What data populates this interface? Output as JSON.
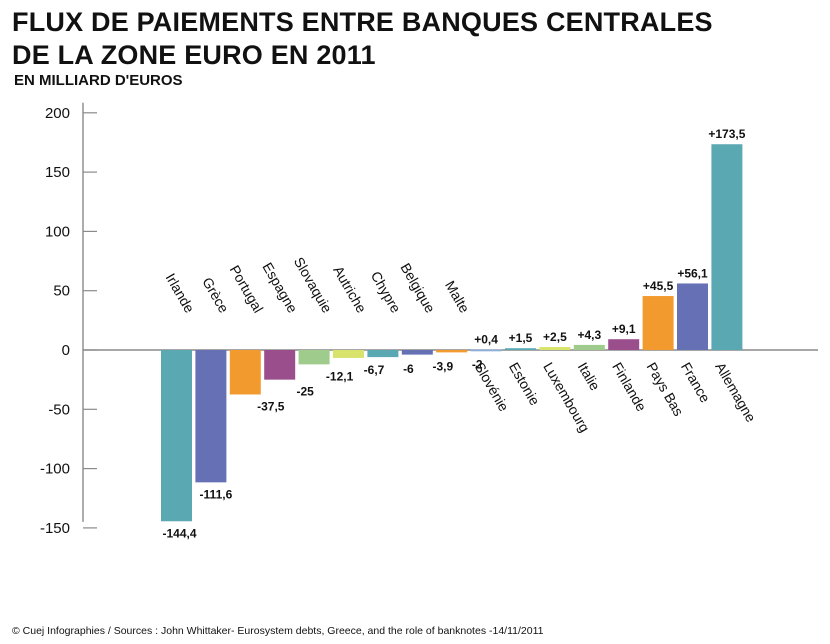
{
  "title_line1": "FLUX DE PAIEMENTS ENTRE BANQUES CENTRALES",
  "title_line2": "DE LA ZONE EURO EN 2011",
  "subtitle": "EN MILLIARD D'EUROS",
  "footer": "© Cuej Infographies / Sources : John Whittaker- Eurosystem debts, Greece, and the role of banknotes -14/11/2011",
  "chart_data": {
    "type": "bar",
    "title": "FLUX DE PAIEMENTS ENTRE BANQUES CENTRALES DE LA ZONE EURO EN 2011",
    "ylabel": "EN MILLIARD D'EUROS",
    "ylim": [
      -150,
      200
    ],
    "yticks": [
      200,
      150,
      100,
      50,
      0,
      -50,
      -100,
      -150
    ],
    "ytick_labels": [
      "200",
      "150",
      "100",
      "50",
      "0",
      "-50",
      "-100",
      "-150"
    ],
    "grid": false,
    "categories": [
      "Irlande",
      "Grèce",
      "Portugal",
      "Espagne",
      "Slovaquie",
      "Autriche",
      "Chypre",
      "Belgique",
      "Malte",
      "Slovénie",
      "Estonie",
      "Luxembourg",
      "Italie",
      "Finlande",
      "Pays Bas",
      "France",
      "Allemagne"
    ],
    "values": [
      -144.4,
      -111.6,
      -37.5,
      -25,
      -12.1,
      -6.7,
      -6,
      -3.9,
      -2,
      0.4,
      1.5,
      2.5,
      4.3,
      9.1,
      45.5,
      56.1,
      173.5
    ],
    "value_labels": [
      "-144,4",
      "-111,6",
      "-37,5",
      "-25",
      "-12,1",
      "-6,7",
      "-6",
      "-3,9",
      "-2",
      "+0,4",
      "+1,5",
      "+2,5",
      "+4,3",
      "+9,1",
      "+45,5",
      "+56,1",
      "+173,5"
    ],
    "colors": [
      "#5aa9b2",
      "#6670b4",
      "#f39a2e",
      "#9a4f8c",
      "#9fcb8c",
      "#d7e36a",
      "#5aa9b2",
      "#6670b4",
      "#f39a2e",
      "#8fb0dc",
      "#5aa9b2",
      "#d7e36a",
      "#9fcb8c",
      "#9a4f8c",
      "#f39a2e",
      "#6670b4",
      "#5aa9b2"
    ]
  }
}
